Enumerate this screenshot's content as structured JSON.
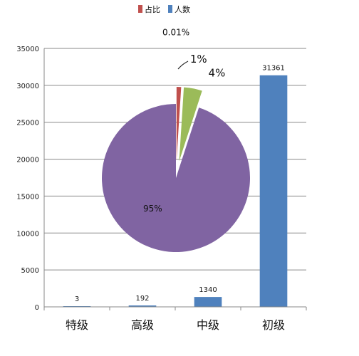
{
  "chart_data": [
    {
      "type": "bar",
      "categories": [
        "特级",
        "高级",
        "中级",
        "初级"
      ],
      "series": [
        {
          "name": "人数",
          "values": [
            3,
            192,
            1340,
            31361
          ]
        }
      ],
      "data_labels": [
        "3",
        "192",
        "1340",
        "31361"
      ],
      "y_ticks": [
        "0",
        "5000",
        "10000",
        "15000",
        "20000",
        "25000",
        "30000",
        "35000"
      ],
      "ylim": [
        0,
        35000
      ],
      "grid": true,
      "legend": "top",
      "bar_color": "#4f81bd"
    },
    {
      "type": "pie",
      "series": [
        {
          "name": "占比",
          "values": [
            0.01,
            1,
            4,
            95
          ]
        }
      ],
      "labels": [
        "0.01%",
        "1%",
        "4%",
        "95%"
      ],
      "colors": [
        "#f5f5f5",
        "#c0504d",
        "#9bbb59",
        "#8064a2"
      ],
      "legend_color": "#c0504d"
    }
  ]
}
